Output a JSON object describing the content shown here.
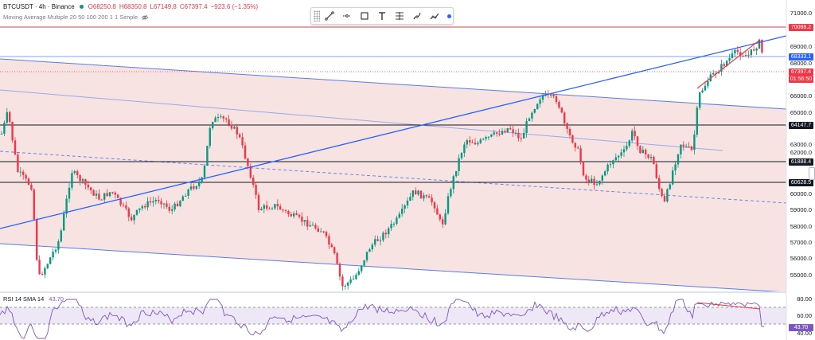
{
  "legend": {
    "symbol": "BTCUSDT · 4h · Binance",
    "open": "O68250.8",
    "high": "H68350.8",
    "low": "L67149.8",
    "close": "C67397.4",
    "change": "−923.6 (−1.35%)",
    "ma_label": "Moving Average Multiple 20 50 100 200 1 1 Simple"
  },
  "toolbar": {
    "items": [
      "trend-line-icon",
      "horizontal-ray-icon",
      "rectangle-icon",
      "text-icon",
      "fib-retracement-icon",
      "brush-icon",
      "long-position-icon"
    ]
  },
  "price_axis": {
    "ticks": [
      "71000.0",
      "69000.0",
      "68000.0",
      "66000.0",
      "65000.0",
      "63000.0",
      "62000.0",
      "60000.0",
      "59000.0",
      "58000.0",
      "57000.0",
      "56000.0",
      "55000.0"
    ],
    "tags": {
      "red_line": "70088.2",
      "blue_line": "68333.1",
      "current_price": "67397.4",
      "countdown": "01:56:50",
      "level1": "64147.7",
      "level2": "61888.4",
      "level3": "60628.5"
    }
  },
  "rsi": {
    "title": "RSI 14 SMA 14",
    "value": "43.70",
    "ticks": [
      "80.00",
      "60.00",
      "40.00"
    ],
    "value_tag": "43.70"
  },
  "colors": {
    "up": "#089981",
    "down": "#f23645",
    "channel_blue": "#2962ff",
    "rsi_purple": "#7e57c2"
  }
}
